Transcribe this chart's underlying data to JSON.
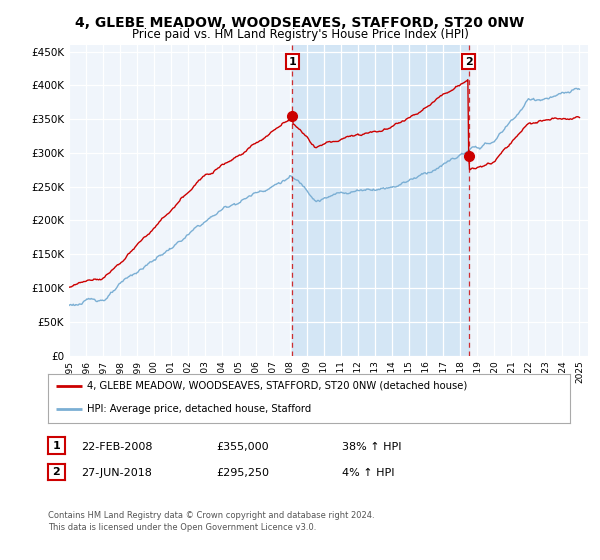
{
  "title": "4, GLEBE MEADOW, WOODSEAVES, STAFFORD, ST20 0NW",
  "subtitle": "Price paid vs. HM Land Registry's House Price Index (HPI)",
  "title_fontsize": 10,
  "subtitle_fontsize": 8.5,
  "plot_bg_color": "#f0f5fb",
  "fig_bg_color": "#ffffff",
  "red_line_color": "#cc0000",
  "blue_line_color": "#7bafd4",
  "shade_color": "#d0e4f5",
  "ylim": [
    0,
    460000
  ],
  "yticks": [
    0,
    50000,
    100000,
    150000,
    200000,
    250000,
    300000,
    350000,
    400000,
    450000
  ],
  "sale1_date": 2008.13,
  "sale1_price": 355000,
  "sale1_label": "1",
  "sale1_text": "22-FEB-2008",
  "sale1_amount": "£355,000",
  "sale1_hpi": "38% ↑ HPI",
  "sale2_date": 2018.49,
  "sale2_price": 295250,
  "sale2_label": "2",
  "sale2_text": "27-JUN-2018",
  "sale2_amount": "£295,250",
  "sale2_hpi": "4% ↑ HPI",
  "legend_line1": "4, GLEBE MEADOW, WOODSEAVES, STAFFORD, ST20 0NW (detached house)",
  "legend_line2": "HPI: Average price, detached house, Stafford",
  "footer1": "Contains HM Land Registry data © Crown copyright and database right 2024.",
  "footer2": "This data is licensed under the Open Government Licence v3.0."
}
